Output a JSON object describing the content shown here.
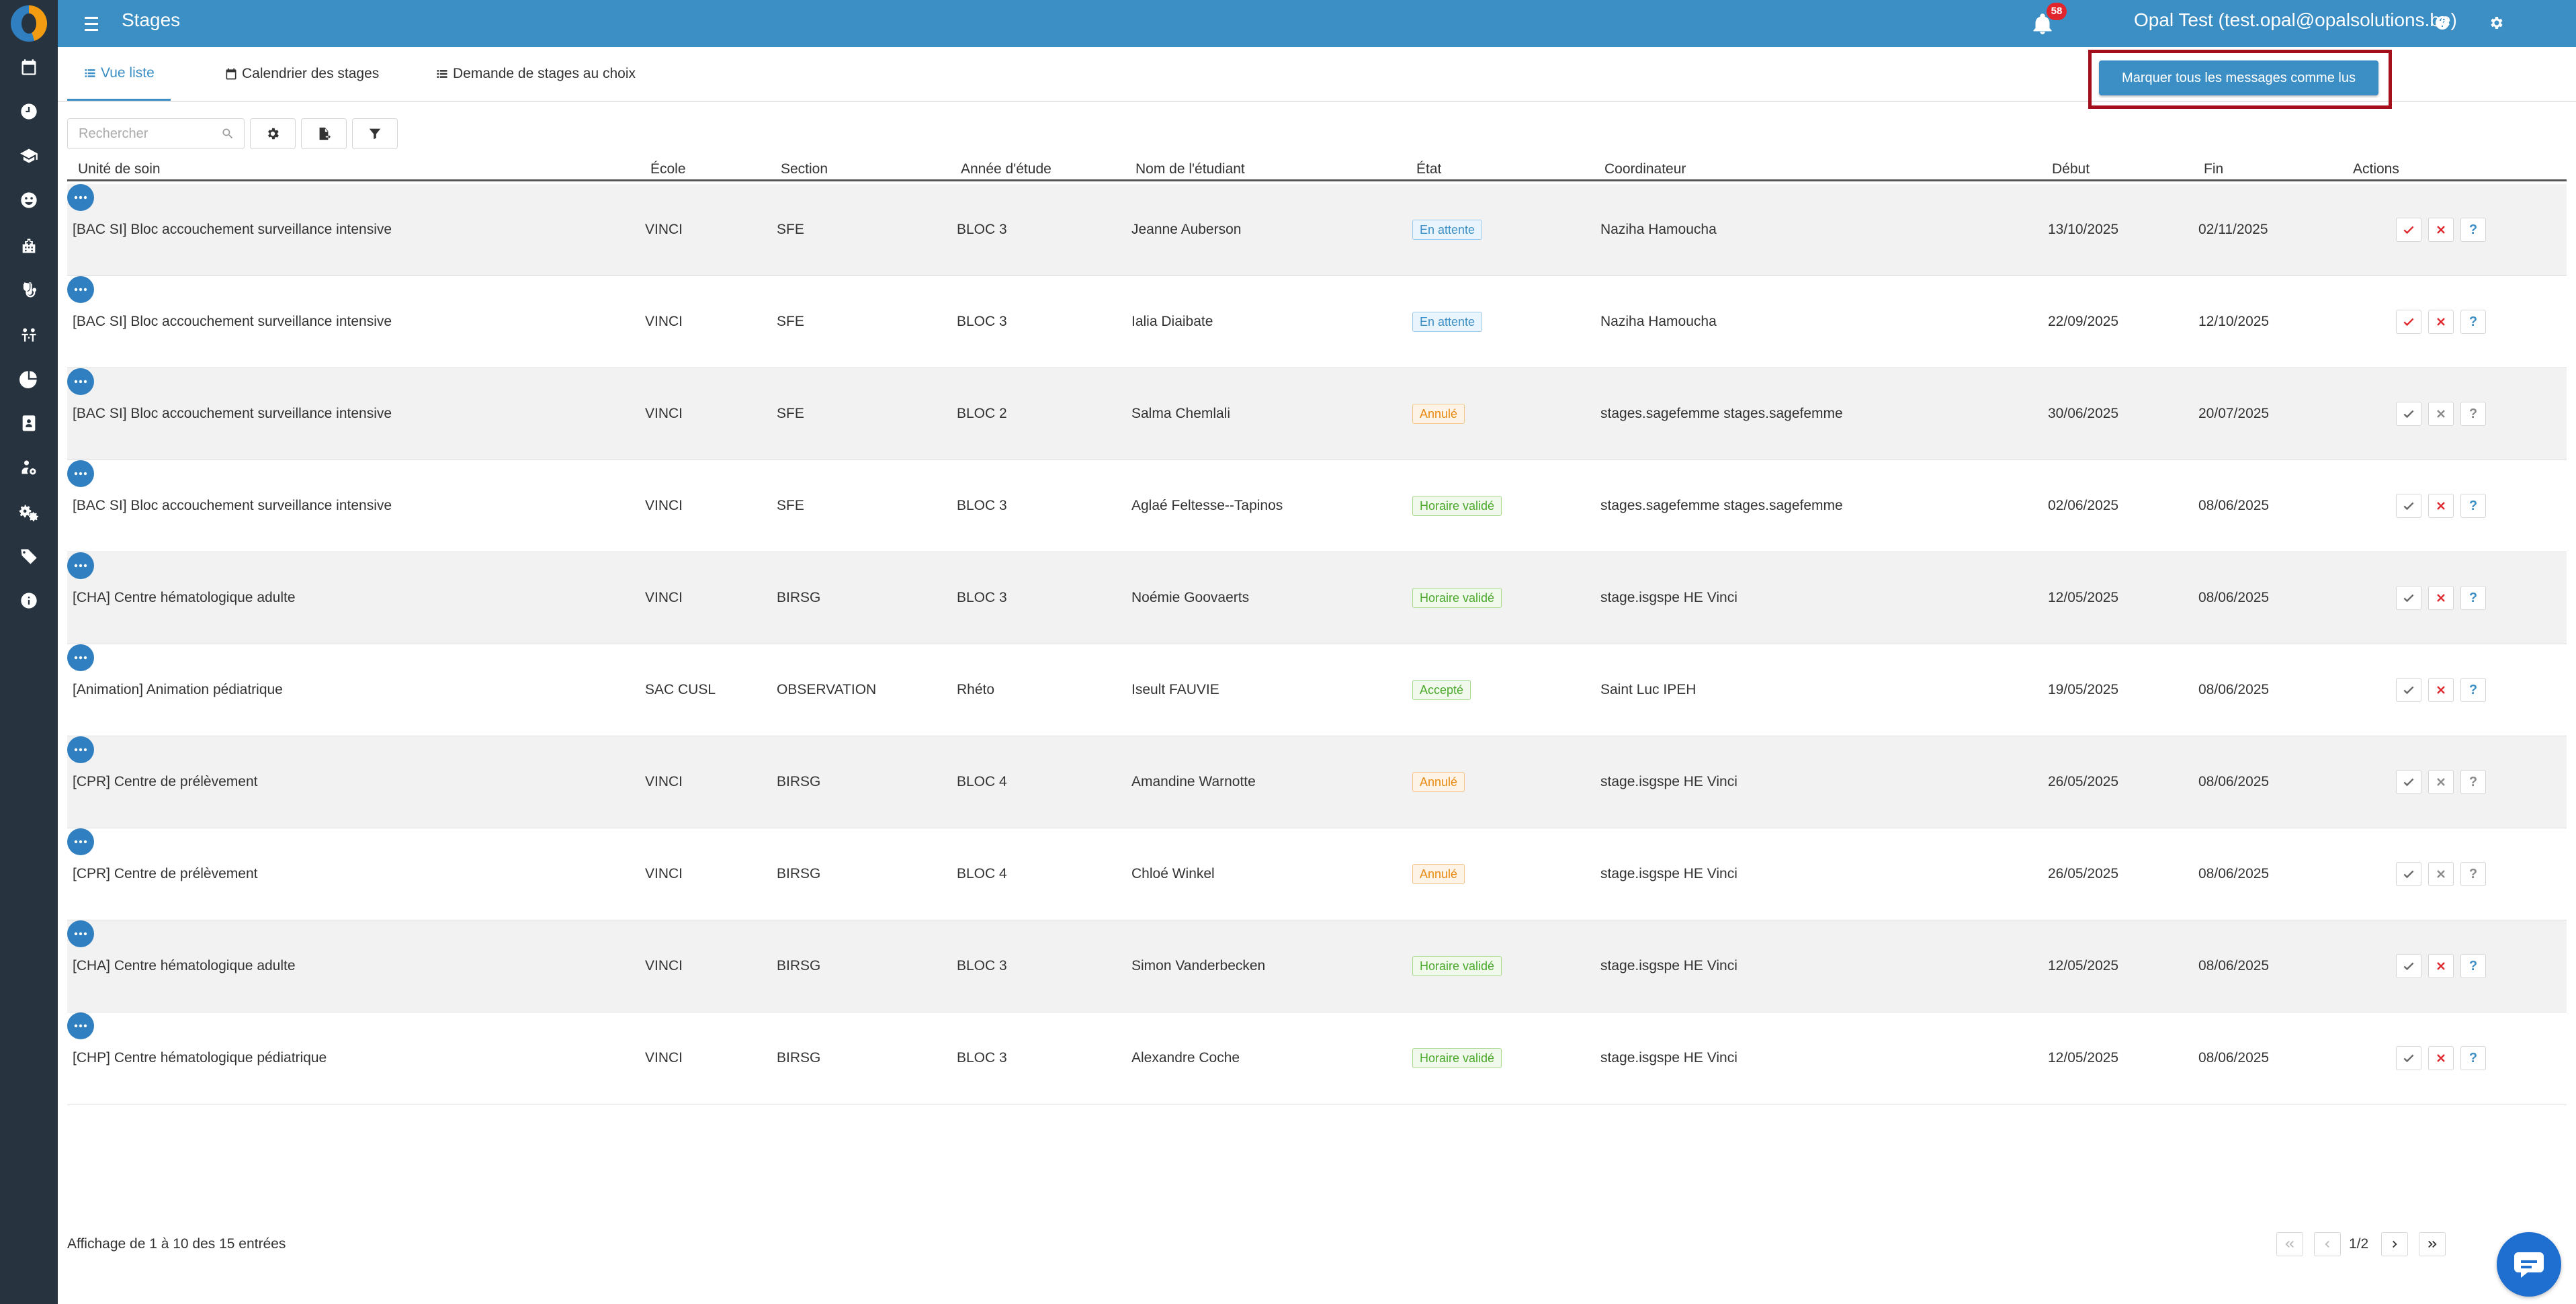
{
  "header": {
    "title": "Stages",
    "notification_count": "58",
    "user": "Opal Test (test.opal@opalsolutions.be)"
  },
  "sidebar": {
    "icons": [
      "calendar-icon",
      "clock-icon",
      "graduation-cap-icon",
      "smiley-icon",
      "hospital-icon",
      "stethoscope-icon",
      "people-icon",
      "pie-chart-icon",
      "id-card-icon",
      "users-cog-icon",
      "cogs-icon",
      "tags-icon",
      "info-icon"
    ]
  },
  "tabs": [
    {
      "label": "Vue liste",
      "active": true
    },
    {
      "label": "Calendrier des stages",
      "active": false
    },
    {
      "label": "Demande de stages au choix",
      "active": false
    }
  ],
  "mark_all_read_label": "Marquer tous les messages comme lus",
  "search": {
    "placeholder": "Rechercher",
    "value": ""
  },
  "table": {
    "columns": [
      "Unité de soin",
      "École",
      "Section",
      "Année d'étude",
      "Nom de l'étudiant",
      "État",
      "Coordinateur",
      "Début",
      "Fin",
      "Actions"
    ],
    "rows": [
      {
        "unit": "[BAC SI] Bloc accouchement surveillance intensive",
        "school": "VINCI",
        "section": "SFE",
        "year": "BLOC 3",
        "student": "Jeanne Auberson",
        "state": "En attente",
        "state_type": "pending",
        "coordinator": "Naziha Hamoucha",
        "start": "13/10/2025",
        "end": "02/11/2025",
        "ok_active": true,
        "no_active": true
      },
      {
        "unit": "[BAC SI] Bloc accouchement surveillance intensive",
        "school": "VINCI",
        "section": "SFE",
        "year": "BLOC 3",
        "student": "Ialia Diaibate",
        "state": "En attente",
        "state_type": "pending",
        "coordinator": "Naziha Hamoucha",
        "start": "22/09/2025",
        "end": "12/10/2025",
        "ok_active": true,
        "no_active": true
      },
      {
        "unit": "[BAC SI] Bloc accouchement surveillance intensive",
        "school": "VINCI",
        "section": "SFE",
        "year": "BLOC 2",
        "student": "Salma Chemlali",
        "state": "Annulé",
        "state_type": "cancel",
        "coordinator": "stages.sagefemme stages.sagefemme",
        "start": "30/06/2025",
        "end": "20/07/2025",
        "ok_active": false,
        "no_active": false
      },
      {
        "unit": "[BAC SI] Bloc accouchement surveillance intensive",
        "school": "VINCI",
        "section": "SFE",
        "year": "BLOC 3",
        "student": "Aglaé Feltesse--Tapinos",
        "state": "Horaire validé",
        "state_type": "valid",
        "coordinator": "stages.sagefemme stages.sagefemme",
        "start": "02/06/2025",
        "end": "08/06/2025",
        "ok_active": false,
        "no_active": true
      },
      {
        "unit": "[CHA] Centre hématologique adulte",
        "school": "VINCI",
        "section": "BIRSG",
        "year": "BLOC 3",
        "student": "Noémie Goovaerts",
        "state": "Horaire validé",
        "state_type": "valid",
        "coordinator": "stage.isgspe HE Vinci",
        "start": "12/05/2025",
        "end": "08/06/2025",
        "ok_active": false,
        "no_active": true
      },
      {
        "unit": "[Animation] Animation pédiatrique",
        "school": "SAC CUSL",
        "section": "OBSERVATION",
        "year": "Rhéto",
        "student": "Iseult FAUVIE",
        "state": "Accepté",
        "state_type": "accepted",
        "coordinator": "Saint Luc IPEH",
        "start": "19/05/2025",
        "end": "08/06/2025",
        "ok_active": false,
        "no_active": true
      },
      {
        "unit": "[CPR] Centre de prélèvement",
        "school": "VINCI",
        "section": "BIRSG",
        "year": "BLOC 4",
        "student": "Amandine Warnotte",
        "state": "Annulé",
        "state_type": "cancel",
        "coordinator": "stage.isgspe HE Vinci",
        "start": "26/05/2025",
        "end": "08/06/2025",
        "ok_active": false,
        "no_active": false
      },
      {
        "unit": "[CPR] Centre de prélèvement",
        "school": "VINCI",
        "section": "BIRSG",
        "year": "BLOC 4",
        "student": "Chloé Winkel",
        "state": "Annulé",
        "state_type": "cancel",
        "coordinator": "stage.isgspe HE Vinci",
        "start": "26/05/2025",
        "end": "08/06/2025",
        "ok_active": false,
        "no_active": false
      },
      {
        "unit": "[CHA] Centre hématologique adulte",
        "school": "VINCI",
        "section": "BIRSG",
        "year": "BLOC 3",
        "student": "Simon Vanderbecken",
        "state": "Horaire validé",
        "state_type": "valid",
        "coordinator": "stage.isgspe HE Vinci",
        "start": "12/05/2025",
        "end": "08/06/2025",
        "ok_active": false,
        "no_active": true
      },
      {
        "unit": "[CHP] Centre hématologique pédiatrique",
        "school": "VINCI",
        "section": "BIRSG",
        "year": "BLOC 3",
        "student": "Alexandre Coche",
        "state": "Horaire validé",
        "state_type": "valid",
        "coordinator": "stage.isgspe HE Vinci",
        "start": "12/05/2025",
        "end": "08/06/2025",
        "ok_active": false,
        "no_active": true
      }
    ],
    "help_label": "?"
  },
  "footer": {
    "entries_info": "Affichage de 1 à 10 des 15 entrées",
    "page": "1/2"
  },
  "colors": {
    "primary": "#3c8fc5",
    "sidebar": "#27343f",
    "danger": "#e0262c",
    "highlight": "#a50f1b"
  }
}
